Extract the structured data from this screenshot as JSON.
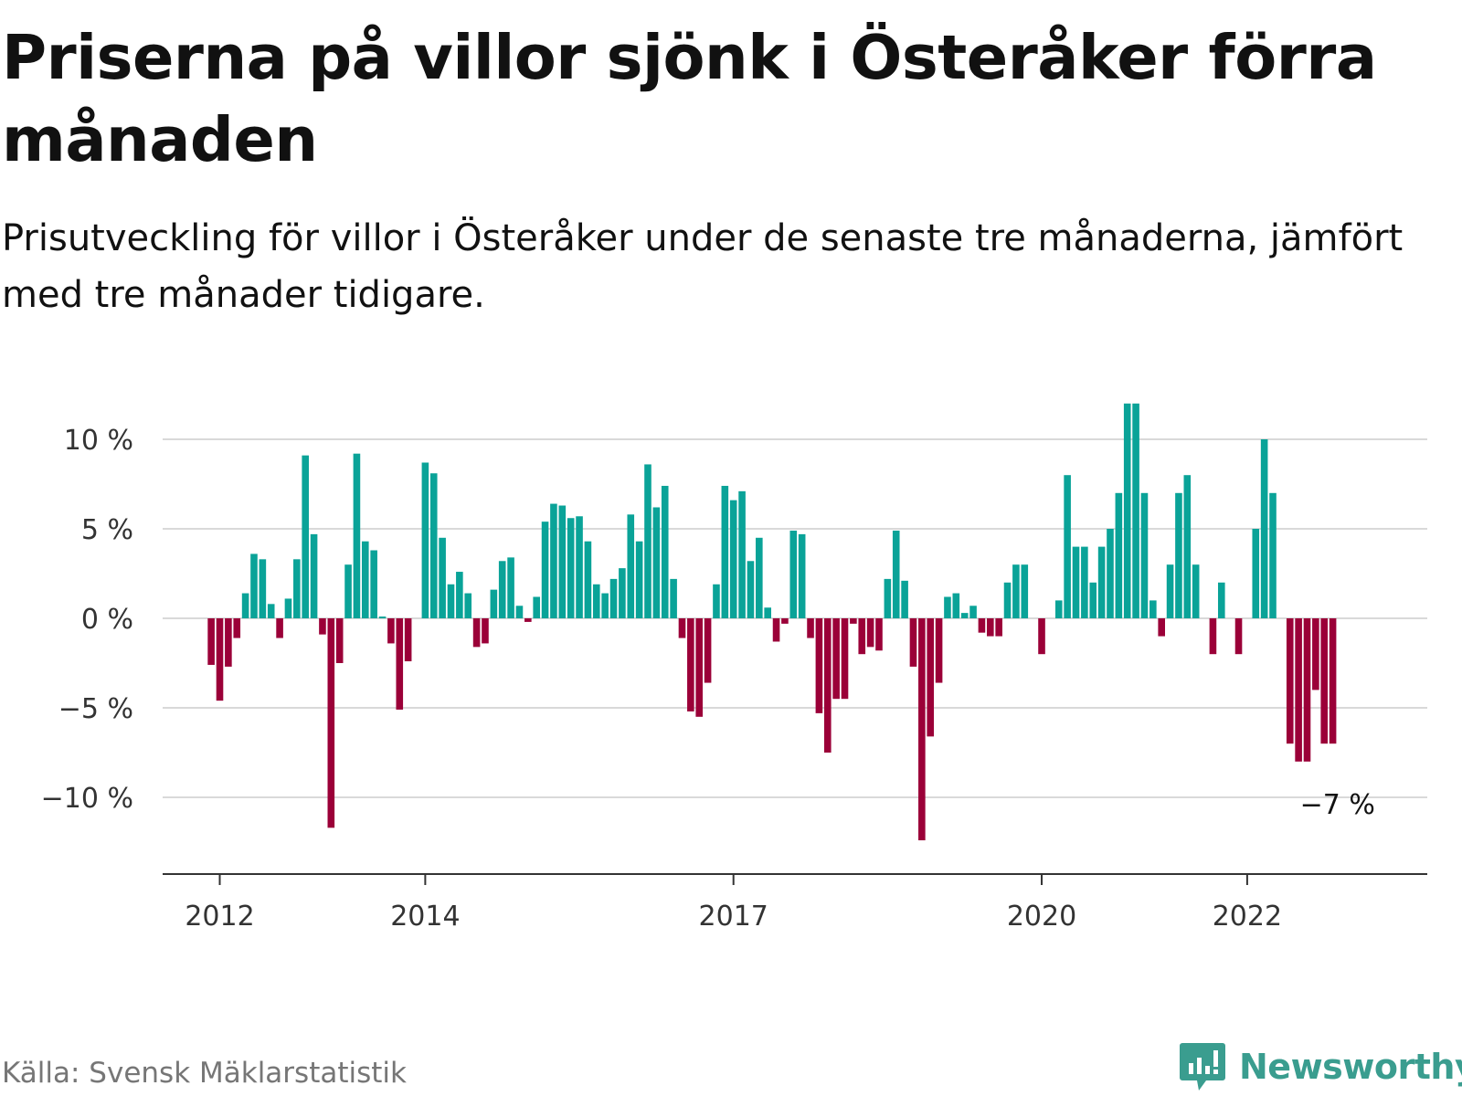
{
  "title": "Priserna på villor sjönk i Österåker förra månaden",
  "subtitle": "Prisutveckling för villor i Österåker under de senaste tre månaderna, jämfört med tre månader tidigare.",
  "source": "Källa: Svensk Mäklarstatistik",
  "logo": {
    "name": "Newsworthy",
    "icon": "newsworthy-logo-icon",
    "color": "#3a9d8f"
  },
  "colors": {
    "positive": "#0aa398",
    "negative": "#9b0038",
    "grid": "#d9d9d9",
    "axis": "#333333"
  },
  "chart_data": {
    "type": "bar",
    "title": "",
    "xlabel": "",
    "ylabel": "",
    "ylim": [
      -14,
      12
    ],
    "yticks": [
      10,
      5,
      0,
      -5,
      -10
    ],
    "ytick_labels": [
      "10 %",
      "5 %",
      "0 %",
      "−5 %",
      "−10 %"
    ],
    "xticks": [
      "2012-01",
      "2014-01",
      "2017-01",
      "2020-01",
      "2022-01"
    ],
    "xtick_labels": [
      "2012",
      "2014",
      "2017",
      "2020",
      "2022"
    ],
    "grid": true,
    "x_start": "2011-12",
    "values": [
      -2.6,
      -4.6,
      -2.7,
      -1.1,
      1.4,
      3.6,
      3.3,
      0.8,
      -1.1,
      1.1,
      3.3,
      9.1,
      4.7,
      -0.9,
      -11.7,
      -2.5,
      3.0,
      9.2,
      4.3,
      3.8,
      0.1,
      -1.4,
      -5.1,
      -2.4,
      null,
      8.7,
      8.1,
      4.5,
      1.9,
      2.6,
      1.4,
      -1.6,
      -1.4,
      1.6,
      3.2,
      3.4,
      0.7,
      -0.2,
      1.2,
      5.4,
      6.4,
      6.3,
      5.6,
      5.7,
      4.3,
      1.9,
      1.4,
      2.2,
      2.8,
      5.8,
      4.3,
      8.6,
      6.2,
      7.4,
      2.2,
      -1.1,
      -5.2,
      -5.5,
      -3.6,
      1.9,
      7.4,
      6.6,
      7.1,
      3.2,
      4.5,
      0.6,
      -1.3,
      -0.3,
      4.9,
      4.7,
      -1.1,
      -5.3,
      -7.5,
      -4.5,
      -4.5,
      -0.3,
      -2.0,
      -1.6,
      -1.8,
      2.2,
      4.9,
      2.1,
      -2.7,
      -12.4,
      -6.6,
      -3.6,
      1.2,
      1.4,
      0.3,
      0.7,
      -0.8,
      -1.0,
      -1.0,
      2.0,
      3.0,
      3.0,
      null,
      -2.0,
      null,
      1.0,
      8.0,
      4.0,
      4.0,
      2.0,
      4.0,
      5.0,
      7.0,
      12.0,
      12.0,
      7.0,
      1.0,
      -1.0,
      3.0,
      7.0,
      8.0,
      3.0,
      null,
      -2.0,
      2.0,
      null,
      -2.0,
      null,
      5.0,
      10.0,
      7.0,
      null,
      -7.0,
      -8.0,
      -8.0,
      -4.0,
      -7.0,
      -7.0
    ],
    "last_value_label": "−7 %"
  }
}
